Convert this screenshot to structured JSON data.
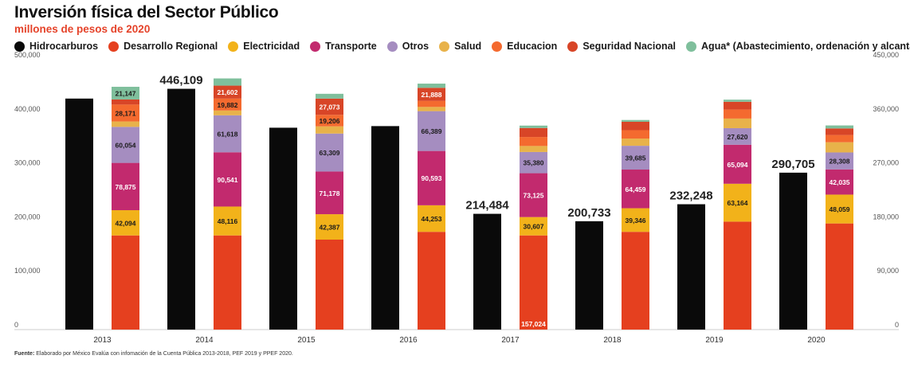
{
  "title": "Inversión física del Sector Público",
  "subtitle": "millones de pesos de 2020",
  "source": {
    "label": "Fuente:",
    "text": "Elaborado por México Evalúa con infomación de la Cuenta Pública 2013-2018, PEF 2019 y PPEF 2020."
  },
  "colors": {
    "Hidrocarburos": "#0a0a0a",
    "Desarrollo Regional": "#e5401f",
    "Electricidad": "#f2b21a",
    "Transporte": "#c22a6e",
    "Otros": "#a58dc0",
    "Salud": "#e8b24a",
    "Educacion": "#f46a2f",
    "Seguridad Nacional": "#d84527",
    "Agua": "#7fbf9c"
  },
  "legend": [
    {
      "key": "Hidrocarburos",
      "label": "Hidrocarburos"
    },
    {
      "key": "Desarrollo Regional",
      "label": "Desarrollo Regional"
    },
    {
      "key": "Electricidad",
      "label": "Electricidad"
    },
    {
      "key": "Transporte",
      "label": "Transporte"
    },
    {
      "key": "Otros",
      "label": "Otros"
    },
    {
      "key": "Salud",
      "label": "Salud"
    },
    {
      "key": "Educacion",
      "label": "Educacion"
    },
    {
      "key": "Seguridad Nacional",
      "label": "Seguridad Nacional"
    },
    {
      "key": "Agua",
      "label": "Agua* (Abastecimiento, ordenación y alcantarillado)"
    }
  ],
  "chart_data": {
    "type": "bar",
    "title": "Inversión física del Sector Público",
    "subtitle": "millones de pesos de 2020",
    "categories": [
      "2013",
      "2014",
      "2015",
      "2016",
      "2017",
      "2018",
      "2019",
      "2020"
    ],
    "left_axis": {
      "ylim": [
        0,
        500000
      ],
      "ticks": [
        "0",
        "100,000",
        "200,000",
        "300,000",
        "400,000",
        "500,000"
      ],
      "tick_values": [
        0,
        100000,
        200000,
        300000,
        400000,
        500000
      ]
    },
    "right_axis": {
      "ylim": [
        0,
        450000
      ],
      "ticks": [
        "0",
        "90,000",
        "180,000",
        "270,000",
        "360,000",
        "450,000"
      ],
      "tick_values": [
        0,
        90000,
        180000,
        270000,
        360000,
        450000
      ]
    },
    "hidrocarburos": {
      "axis": "left",
      "values": [
        428000,
        446109,
        374000,
        377000,
        214484,
        200733,
        232248,
        290705
      ],
      "labels": [
        "",
        "446,109",
        "",
        "",
        "214,484",
        "200,733",
        "232,248",
        "290,705"
      ]
    },
    "stack_order": [
      "Desarrollo Regional",
      "Electricidad",
      "Transporte",
      "Otros",
      "Salud",
      "Educacion",
      "Seguridad Nacional",
      "Agua"
    ],
    "stacks": {
      "axis": "right",
      "series": [
        {
          "name": "Desarrollo Regional",
          "values": [
            157000,
            157024,
            150000,
            163000,
            157024,
            163000,
            180000,
            177000
          ],
          "labels": [
            "",
            "",
            "",
            "",
            "157,024",
            "",
            "",
            ""
          ]
        },
        {
          "name": "Electricidad",
          "values": [
            42094,
            48116,
            42387,
            44253,
            30607,
            39346,
            63164,
            48059
          ],
          "labels": [
            "42,094",
            "48,116",
            "42,387",
            "44,253",
            "30,607",
            "39,346",
            "63,164",
            "48,059"
          ]
        },
        {
          "name": "Transporte",
          "values": [
            78875,
            90541,
            71178,
            90593,
            73125,
            64459,
            65094,
            42035
          ],
          "labels": [
            "78,875",
            "90,541",
            "71,178",
            "90,593",
            "73,125",
            "64,459",
            "65,094",
            "42,035"
          ]
        },
        {
          "name": "Otros",
          "values": [
            60054,
            61618,
            63309,
            66389,
            35380,
            39685,
            27620,
            28308
          ],
          "labels": [
            "60,054",
            "61,618",
            "63,309",
            "66,389",
            "35,380",
            "39,685",
            "27,620",
            "28,308"
          ]
        },
        {
          "name": "Salud",
          "values": [
            9000,
            8000,
            12000,
            7000,
            10000,
            12000,
            16000,
            17000
          ],
          "labels": [
            "",
            "",
            "",
            "",
            "",
            "",
            "",
            ""
          ]
        },
        {
          "name": "Educacion",
          "values": [
            28171,
            19882,
            19206,
            10000,
            15000,
            14000,
            15000,
            12000
          ],
          "labels": [
            "28,171",
            "19,882",
            "19,206",
            "",
            "",
            "",
            "",
            ""
          ]
        },
        {
          "name": "Seguridad Nacional",
          "values": [
            8500,
            21602,
            27073,
            21888,
            15000,
            14000,
            13000,
            11000
          ],
          "labels": [
            "",
            "21,602",
            "27,073",
            "21,888",
            "",
            "",
            "",
            ""
          ]
        },
        {
          "name": "Agua",
          "values": [
            21147,
            12000,
            8000,
            7000,
            4000,
            3000,
            3500,
            5000
          ],
          "labels": [
            "21,147",
            "",
            "",
            "",
            "",
            "",
            "",
            ""
          ]
        }
      ]
    }
  }
}
